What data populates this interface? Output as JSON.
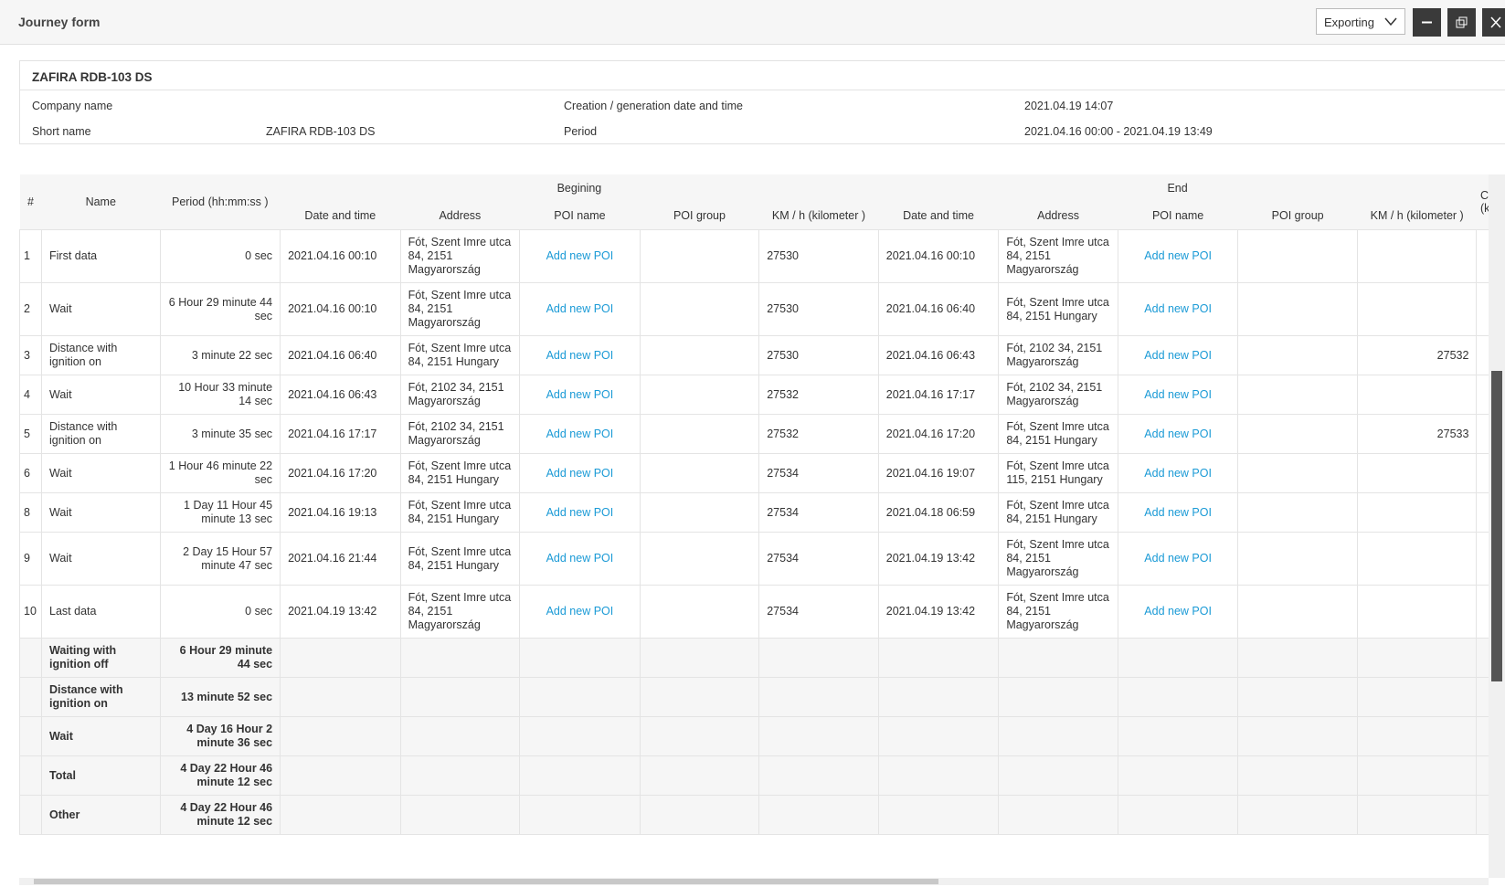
{
  "header": {
    "title": "Journey form",
    "export_select": "Exporting"
  },
  "info": {
    "vehicle": "ZAFIRA RDB-103 DS",
    "company_label": "Company name",
    "creation_label": "Creation / generation date and time",
    "creation_value": "2021.04.19 14:07",
    "short_name_label": "Short name",
    "short_name_value": "ZAFIRA RDB-103 DS",
    "period_label": "Period",
    "period_value": "2021.04.16 00:00 - 2021.04.19 13:49"
  },
  "table": {
    "group_headers": {
      "number": "#",
      "name": "Name",
      "period": "Period (hh:mm:ss )",
      "begin": "Begining",
      "end": "End",
      "canbus": "Canbus distance (kilometer)"
    },
    "sub_headers": [
      "Date and time",
      "Address",
      "POI name",
      "POI group",
      "KM / h (kilometer )",
      "Date and time",
      "Address",
      "POI name",
      "POI group",
      "KM / h (kilometer )"
    ],
    "rows": [
      [
        "1",
        "First data",
        "0 sec",
        "2021.04.16 00:10",
        "Fót, Szent Imre utca 84, 2151 Magyarország",
        "Add new POI",
        null,
        "27530",
        "2021.04.16 00:10",
        "Fót, Szent Imre utca 84, 2151 Magyarország",
        "Add new POI",
        null,
        null,
        null
      ],
      [
        "2",
        "Wait",
        "6 Hour 29 minute 44 sec",
        "2021.04.16 00:10",
        "Fót, Szent Imre utca 84, 2151 Magyarország",
        "Add new POI",
        null,
        "27530",
        "2021.04.16 06:40",
        "Fót, Szent Imre utca 84, 2151 Hungary",
        "Add new POI",
        null,
        null,
        null
      ],
      [
        "3",
        "Distance with ignition on",
        "3 minute 22 sec",
        "2021.04.16 06:40",
        "Fót, Szent Imre utca 84, 2151 Hungary",
        "Add new POI",
        null,
        "27530",
        "2021.04.16 06:43",
        "Fót, 2102 34, 2151 Magyarország",
        "Add new POI",
        null,
        "27532",
        null
      ],
      [
        "4",
        "Wait",
        "10 Hour 33 minute 14 sec",
        "2021.04.16 06:43",
        "Fót, 2102 34, 2151 Magyarország",
        "Add new POI",
        null,
        "27532",
        "2021.04.16 17:17",
        "Fót, 2102 34, 2151 Magyarország",
        "Add new POI",
        null,
        null,
        null
      ],
      [
        "5",
        "Distance with ignition on",
        "3 minute 35 sec",
        "2021.04.16 17:17",
        "Fót, 2102 34, 2151 Magyarország",
        "Add new POI",
        null,
        "27532",
        "2021.04.16 17:20",
        "Fót, Szent Imre utca 84, 2151 Hungary",
        "Add new POI",
        null,
        "27533",
        null
      ],
      [
        "6",
        "Wait",
        "1 Hour 46 minute 22 sec",
        "2021.04.16 17:20",
        "Fót, Szent Imre utca 84, 2151 Hungary",
        "Add new POI",
        null,
        "27534",
        "2021.04.16 19:07",
        "Fót, Szent Imre utca 115, 2151 Hungary",
        "Add new POI",
        null,
        null,
        null
      ],
      [
        "8",
        "Wait",
        "1 Day 11 Hour 45 minute 13 sec",
        "2021.04.16 19:13",
        "Fót, Szent Imre utca 84, 2151 Hungary",
        "Add new POI",
        null,
        "27534",
        "2021.04.18 06:59",
        "Fót, Szent Imre utca 84, 2151 Hungary",
        "Add new POI",
        null,
        null,
        null
      ],
      [
        "9",
        "Wait",
        "2 Day 15 Hour 57 minute 47 sec",
        "2021.04.16 21:44",
        "Fót, Szent Imre utca 84, 2151 Hungary",
        "Add new POI",
        null,
        "27534",
        "2021.04.19 13:42",
        "Fót, Szent Imre utca 84, 2151 Magyarország",
        "Add new POI",
        null,
        null,
        null
      ],
      [
        "10",
        "Last data",
        "0 sec",
        "2021.04.19 13:42",
        "Fót, Szent Imre utca 84, 2151 Magyarország",
        "Add new POI",
        null,
        "27534",
        "2021.04.19 13:42",
        "Fót, Szent Imre utca 84, 2151 Magyarország",
        "Add new POI",
        null,
        null,
        null
      ]
    ],
    "summary": [
      [
        "Waiting with ignition off",
        "6 Hour 29 minute 44 sec"
      ],
      [
        "Distance with ignition on",
        "13 minute 52 sec"
      ],
      [
        "Wait",
        "4 Day 16 Hour 2 minute 36 sec"
      ],
      [
        "Total",
        "4 Day 22 Hour 46 minute 12 sec"
      ],
      [
        "Other",
        "4 Day 22 Hour 46 minute 12 sec"
      ]
    ]
  }
}
